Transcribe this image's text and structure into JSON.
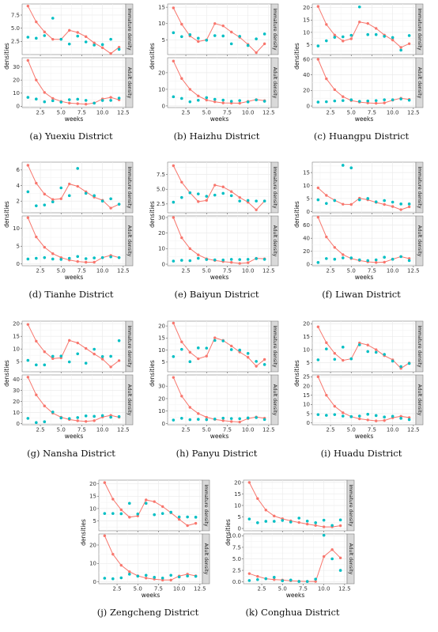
{
  "labels": {
    "xlabel": "weeks",
    "ylabel": "densities",
    "strip_top": "Immature density",
    "strip_bottom": "Adult density"
  },
  "colors": {
    "line": "#F8766D",
    "points": "#00BFC4",
    "panel": "#ffffff",
    "grid": "#ebebeb",
    "strip": "#d9d9d9"
  },
  "chart_data": [
    {
      "type": "scatter",
      "caption": "(a)  Yuexiu District",
      "x": [
        1,
        2,
        3,
        4,
        5,
        6,
        7,
        8,
        9,
        10,
        11,
        12
      ],
      "xlim": [
        0.3,
        12.8
      ],
      "xticks": [
        2.5,
        5.0,
        7.5,
        10.0,
        12.5
      ],
      "immature": {
        "ylim": [
          0,
          9.6
        ],
        "yticks": [
          2.5,
          5.0,
          7.5
        ],
        "fitted": [
          9.2,
          6.2,
          4.3,
          2.9,
          2.9,
          4.6,
          4.2,
          3.4,
          2.2,
          1.3,
          0.2,
          1.4
        ],
        "observed": [
          3.3,
          3.1,
          3.6,
          6.9,
          2.9,
          2.0,
          3.5,
          2.4,
          1.8,
          1.9,
          2.9,
          1.0
        ]
      },
      "adult": {
        "ylim": [
          -1,
          37
        ],
        "yticks": [
          0,
          10,
          20,
          30
        ],
        "fitted": [
          35,
          20,
          10.5,
          6,
          3.7,
          2.4,
          2,
          1.6,
          2.5,
          5.6,
          6.8,
          4.9
        ],
        "observed": [
          6.8,
          5.5,
          3.4,
          4.2,
          3.2,
          5,
          5.4,
          4.5,
          2.4,
          4.4,
          4.5,
          6.2
        ]
      }
    },
    {
      "type": "scatter",
      "caption": "(b)  Haizhu District",
      "x": [
        1,
        2,
        3,
        4,
        5,
        6,
        7,
        8,
        9,
        10,
        11,
        12
      ],
      "xlim": [
        0.3,
        12.8
      ],
      "xticks": [
        2.5,
        5.0,
        7.5,
        10.0,
        12.5
      ],
      "immature": {
        "ylim": [
          0.5,
          16
        ],
        "yticks": [
          5,
          10,
          15
        ],
        "fitted": [
          14.8,
          9.8,
          6.2,
          4.5,
          5.0,
          10.0,
          9.3,
          7.4,
          5.8,
          3.6,
          1.1,
          3.8
        ],
        "observed": [
          7.2,
          6.0,
          6.6,
          5.5,
          4.9,
          6.3,
          6.2,
          3.8,
          6.1,
          3.3,
          5.3,
          6.8
        ]
      },
      "adult": {
        "ylim": [
          -1,
          29
        ],
        "yticks": [
          0,
          10,
          20
        ],
        "fitted": [
          27,
          16.5,
          10,
          6,
          3.5,
          2.5,
          1.8,
          1.7,
          1.6,
          2.7,
          3.8,
          3.2
        ],
        "observed": [
          5.5,
          4.5,
          2.5,
          3.4,
          5,
          4,
          3.5,
          2.8,
          3.2,
          2.4,
          3.6,
          2.8
        ]
      }
    },
    {
      "type": "scatter",
      "caption": "(c)  Huangpu District",
      "x": [
        1,
        2,
        3,
        4,
        5,
        6,
        7,
        8,
        9,
        10,
        11,
        12
      ],
      "xlim": [
        0.3,
        12.8
      ],
      "xticks": [
        2.5,
        5.0,
        7.5,
        10.0,
        12.5
      ],
      "immature": {
        "ylim": [
          1,
          21.5
        ],
        "yticks": [
          5,
          10,
          15,
          20
        ],
        "fitted": [
          20.5,
          13.2,
          8.9,
          6.5,
          7.4,
          14.2,
          13.6,
          11.6,
          8.9,
          6.9,
          3.9,
          5.4
        ],
        "observed": [
          4.5,
          6.6,
          8,
          8.2,
          8.8,
          20.3,
          9.1,
          9.1,
          8.4,
          7.9,
          2.8,
          8.7
        ]
      },
      "adult": {
        "ylim": [
          -2,
          62
        ],
        "yticks": [
          0,
          20,
          40,
          60
        ],
        "fitted": [
          60,
          35,
          21,
          12,
          7,
          5,
          4,
          3.5,
          4,
          7.5,
          10,
          8.5
        ],
        "observed": [
          5,
          5.5,
          6.5,
          7,
          8,
          6,
          6.5,
          7,
          8,
          8,
          9,
          7.5
        ]
      }
    },
    {
      "type": "scatter",
      "caption": "(d)  Tianhe District",
      "x": [
        1,
        2,
        3,
        4,
        5,
        6,
        7,
        8,
        9,
        10,
        11,
        12
      ],
      "xlim": [
        0.3,
        12.8
      ],
      "xticks": [
        2.5,
        5.0,
        7.5,
        10.0,
        12.5
      ],
      "immature": {
        "ylim": [
          0.5,
          7
        ],
        "yticks": [
          2,
          4,
          6
        ],
        "fitted": [
          6.6,
          4.3,
          2.9,
          2.2,
          2.3,
          4.2,
          3.9,
          3.2,
          2.5,
          2.1,
          1.1,
          1.6
        ],
        "observed": [
          3.2,
          1.4,
          1.5,
          1.9,
          3.7,
          2.7,
          6.2,
          3.0,
          2.7,
          2.0,
          2.3,
          1.6
        ]
      },
      "adult": {
        "ylim": [
          -0.5,
          13.5
        ],
        "yticks": [
          0,
          5,
          10
        ],
        "fitted": [
          13,
          7.6,
          4.7,
          2.9,
          1.8,
          1.1,
          0.7,
          0.5,
          0.5,
          1.8,
          2.4,
          1.8
        ],
        "observed": [
          1.4,
          1.6,
          1.8,
          1.4,
          1.3,
          1.6,
          2.1,
          1.5,
          1.7,
          1.8,
          2,
          1.8
        ]
      }
    },
    {
      "type": "scatter",
      "caption": "(e)  Baiyun District",
      "x": [
        1,
        2,
        3,
        4,
        5,
        6,
        7,
        8,
        9,
        10,
        11,
        12
      ],
      "xlim": [
        0.3,
        12.8
      ],
      "xticks": [
        2.5,
        5.0,
        7.5,
        10.0,
        12.5
      ],
      "immature": {
        "ylim": [
          1,
          9.6
        ],
        "yticks": [
          2.5,
          5.0,
          7.5
        ],
        "fitted": [
          9.0,
          6.2,
          4.4,
          2.9,
          3.1,
          5.7,
          5.4,
          4.6,
          3.6,
          2.8,
          1.5,
          3.0
        ],
        "observed": [
          2.8,
          3.6,
          4.4,
          4.2,
          3.8,
          4.0,
          4.3,
          3.9,
          3.0,
          3.1,
          3.0,
          3.0
        ]
      },
      "adult": {
        "ylim": [
          -1,
          31
        ],
        "yticks": [
          0,
          10,
          20,
          30
        ],
        "fitted": [
          30,
          17,
          10,
          6,
          3.5,
          2.4,
          1.7,
          1.2,
          0.5,
          1,
          3.8,
          3.5
        ],
        "observed": [
          2,
          2.5,
          2.3,
          3.8,
          3,
          2.8,
          2.7,
          3.1,
          3,
          3.1,
          3.6,
          3.1
        ]
      }
    },
    {
      "type": "scatter",
      "caption": "(f)  Liwan District",
      "x": [
        1,
        2,
        3,
        4,
        5,
        6,
        7,
        8,
        9,
        10,
        11,
        12
      ],
      "xlim": [
        0.3,
        12.8
      ],
      "xticks": [
        2.5,
        5.0,
        7.5,
        10.0,
        12.5
      ],
      "immature": {
        "ylim": [
          -0.5,
          19
        ],
        "yticks": [
          0,
          5,
          10,
          15
        ],
        "fitted": [
          9.1,
          6.2,
          4.3,
          2.8,
          2.7,
          5.1,
          4.5,
          3.5,
          2.7,
          1.9,
          0.7,
          1.8
        ],
        "observed": [
          4.5,
          3.1,
          4.2,
          17.8,
          16.8,
          4.5,
          5.0,
          3.7,
          4.2,
          3.6,
          2.9,
          2.9
        ]
      },
      "adult": {
        "ylim": [
          -2,
          74
        ],
        "yticks": [
          0,
          20,
          40,
          60
        ],
        "fitted": [
          72,
          42,
          26,
          15,
          9,
          6,
          4,
          3,
          3.5,
          8,
          12,
          9
        ],
        "observed": [
          3,
          9,
          8,
          10,
          10,
          7,
          6,
          7,
          11,
          8,
          12,
          6
        ]
      }
    },
    {
      "type": "scatter",
      "caption": "(g)  Nansha District",
      "x": [
        1,
        2,
        3,
        4,
        5,
        6,
        7,
        8,
        9,
        10,
        11,
        12
      ],
      "xlim": [
        0.3,
        12.8
      ],
      "xticks": [
        2.5,
        5.0,
        7.5,
        10.0,
        12.5
      ],
      "immature": {
        "ylim": [
          1,
          21
        ],
        "yticks": [
          5,
          10,
          15,
          20
        ],
        "fitted": [
          19.7,
          13.1,
          8.9,
          6.2,
          6.5,
          13.4,
          12.4,
          10.2,
          8.0,
          6.0,
          2.9,
          5.4
        ],
        "observed": [
          5.5,
          3.7,
          3.7,
          7.1,
          7.2,
          4.9,
          8.1,
          4.4,
          9.9,
          7.0,
          7.1,
          13.3
        ]
      },
      "adult": {
        "ylim": [
          -1,
          44
        ],
        "yticks": [
          0,
          10,
          20,
          30,
          40
        ],
        "fitted": [
          42,
          26,
          16,
          9.5,
          5.8,
          3.7,
          2.6,
          2,
          2.7,
          6,
          7.5,
          5.8
        ],
        "observed": [
          4.8,
          1,
          1.7,
          10.5,
          5.2,
          4.6,
          5.5,
          7,
          6.6,
          7.3,
          5.8,
          6.4
        ]
      }
    },
    {
      "type": "scatter",
      "caption": "(h)  Panyu District",
      "x": [
        1,
        2,
        3,
        4,
        5,
        6,
        7,
        8,
        9,
        10,
        11,
        12
      ],
      "xlim": [
        0.3,
        12.8
      ],
      "xticks": [
        2.5,
        5.0,
        7.5,
        10.0,
        12.5
      ],
      "immature": {
        "ylim": [
          1,
          22
        ],
        "yticks": [
          5,
          10,
          15,
          20
        ],
        "fitted": [
          21.2,
          13.4,
          9.1,
          6.4,
          7.5,
          15.1,
          14.0,
          11.7,
          9.2,
          7.0,
          3.3,
          6.1
        ],
        "observed": [
          7.3,
          10.3,
          5.2,
          10.9,
          10.8,
          14.0,
          13.8,
          10.2,
          10.0,
          8.6,
          5.3,
          4.0
        ]
      },
      "adult": {
        "ylim": [
          -1,
          39
        ],
        "yticks": [
          0,
          10,
          20,
          30
        ],
        "fitted": [
          37,
          22,
          13,
          8,
          5,
          3.3,
          2.3,
          1.6,
          1.2,
          4,
          5.2,
          4.3
        ],
        "observed": [
          2.8,
          4.2,
          3.1,
          3.4,
          3.1,
          3.6,
          4.3,
          4,
          3.9,
          4.5,
          4.8,
          3.2
        ]
      }
    },
    {
      "type": "scatter",
      "caption": "(i)  Huadu District",
      "x": [
        1,
        2,
        3,
        4,
        5,
        6,
        7,
        8,
        9,
        10,
        11,
        12
      ],
      "xlim": [
        0.3,
        12.8
      ],
      "xticks": [
        2.5,
        5.0,
        7.5,
        10.0,
        12.5
      ],
      "immature": {
        "ylim": [
          1.5,
          21
        ],
        "yticks": [
          5,
          10,
          15,
          20
        ],
        "fitted": [
          18.8,
          12.7,
          8.6,
          5.9,
          6.5,
          12.6,
          11.8,
          10.0,
          7.7,
          6.1,
          2.8,
          4.9
        ],
        "observed": [
          6.1,
          10.3,
          6.3,
          11.0,
          6.5,
          11.9,
          9.3,
          9.0,
          8.2,
          5.6,
          3.5,
          4.7
        ]
      },
      "adult": {
        "ylim": [
          -1,
          26
        ],
        "yticks": [
          0,
          5,
          10,
          15,
          20,
          25
        ],
        "fitted": [
          25,
          15,
          9,
          5.5,
          3.4,
          2.2,
          1.6,
          1.1,
          1.3,
          2.8,
          3.6,
          2.9
        ],
        "observed": [
          4.5,
          4.1,
          4.5,
          3.7,
          3.4,
          3.7,
          4.7,
          4,
          3.2,
          3.6,
          2.5,
          1.8
        ]
      }
    },
    {
      "type": "scatter",
      "caption": "(j)  Zengcheng District",
      "x": [
        1,
        2,
        3,
        4,
        5,
        6,
        7,
        8,
        9,
        10,
        11,
        12
      ],
      "xlim": [
        0.3,
        12.8
      ],
      "xticks": [
        2.5,
        5.0,
        7.5,
        10.0,
        12.5
      ],
      "immature": {
        "ylim": [
          1,
          21.5
        ],
        "yticks": [
          5,
          10,
          15,
          20
        ],
        "fitted": [
          20.5,
          13.8,
          9.5,
          6.5,
          7.0,
          13.5,
          12.8,
          10.8,
          8.3,
          5.6,
          3.1,
          4.0
        ],
        "observed": [
          8,
          8,
          7.9,
          12.1,
          7.8,
          12.1,
          7.5,
          8,
          8.5,
          6.6,
          6.6,
          6.5
        ]
      },
      "adult": {
        "ylim": [
          -1,
          26
        ],
        "yticks": [
          0,
          10,
          20
        ],
        "fitted": [
          25,
          15,
          9,
          5.5,
          3.3,
          2.1,
          1.5,
          1,
          1,
          3.2,
          4.2,
          3.3
        ],
        "observed": [
          2,
          1.7,
          2.2,
          4.2,
          3.1,
          3.6,
          2.5,
          2.1,
          3.6,
          2.7,
          3.2,
          3
        ]
      }
    },
    {
      "type": "scatter",
      "caption": "(k)  Conghua District",
      "x": [
        1,
        2,
        3,
        4,
        5,
        6,
        7,
        8,
        9,
        10,
        11,
        12
      ],
      "xlim": [
        0.3,
        12.8
      ],
      "xticks": [
        2.5,
        5.0,
        7.5,
        10.0,
        12.5
      ],
      "immature": {
        "ylim": [
          -1,
          21
        ],
        "yticks": [
          0,
          5,
          10,
          15,
          20
        ],
        "fitted": [
          20,
          13,
          8,
          5.4,
          4.2,
          3.3,
          2.6,
          1.9,
          1.3,
          0.7,
          0.7,
          1.2
        ],
        "observed": [
          4.1,
          2.5,
          3.1,
          3.1,
          3.5,
          2.8,
          4.5,
          3.2,
          2.5,
          3.6,
          1.3,
          3.7
        ]
      },
      "adult": {
        "ylim": [
          -0.4,
          10.4
        ],
        "yticks": [
          0.0,
          2.5,
          5.0,
          7.5,
          10.0
        ],
        "fitted": [
          1.8,
          1.2,
          0.7,
          0.5,
          0.4,
          0.25,
          0.15,
          0.1,
          0.1,
          5.5,
          7,
          5.2
        ],
        "observed": [
          0.3,
          0.5,
          0.7,
          1.0,
          0.25,
          0.4,
          0.1,
          0.1,
          0.6,
          10.1,
          5,
          2.5
        ]
      }
    }
  ]
}
